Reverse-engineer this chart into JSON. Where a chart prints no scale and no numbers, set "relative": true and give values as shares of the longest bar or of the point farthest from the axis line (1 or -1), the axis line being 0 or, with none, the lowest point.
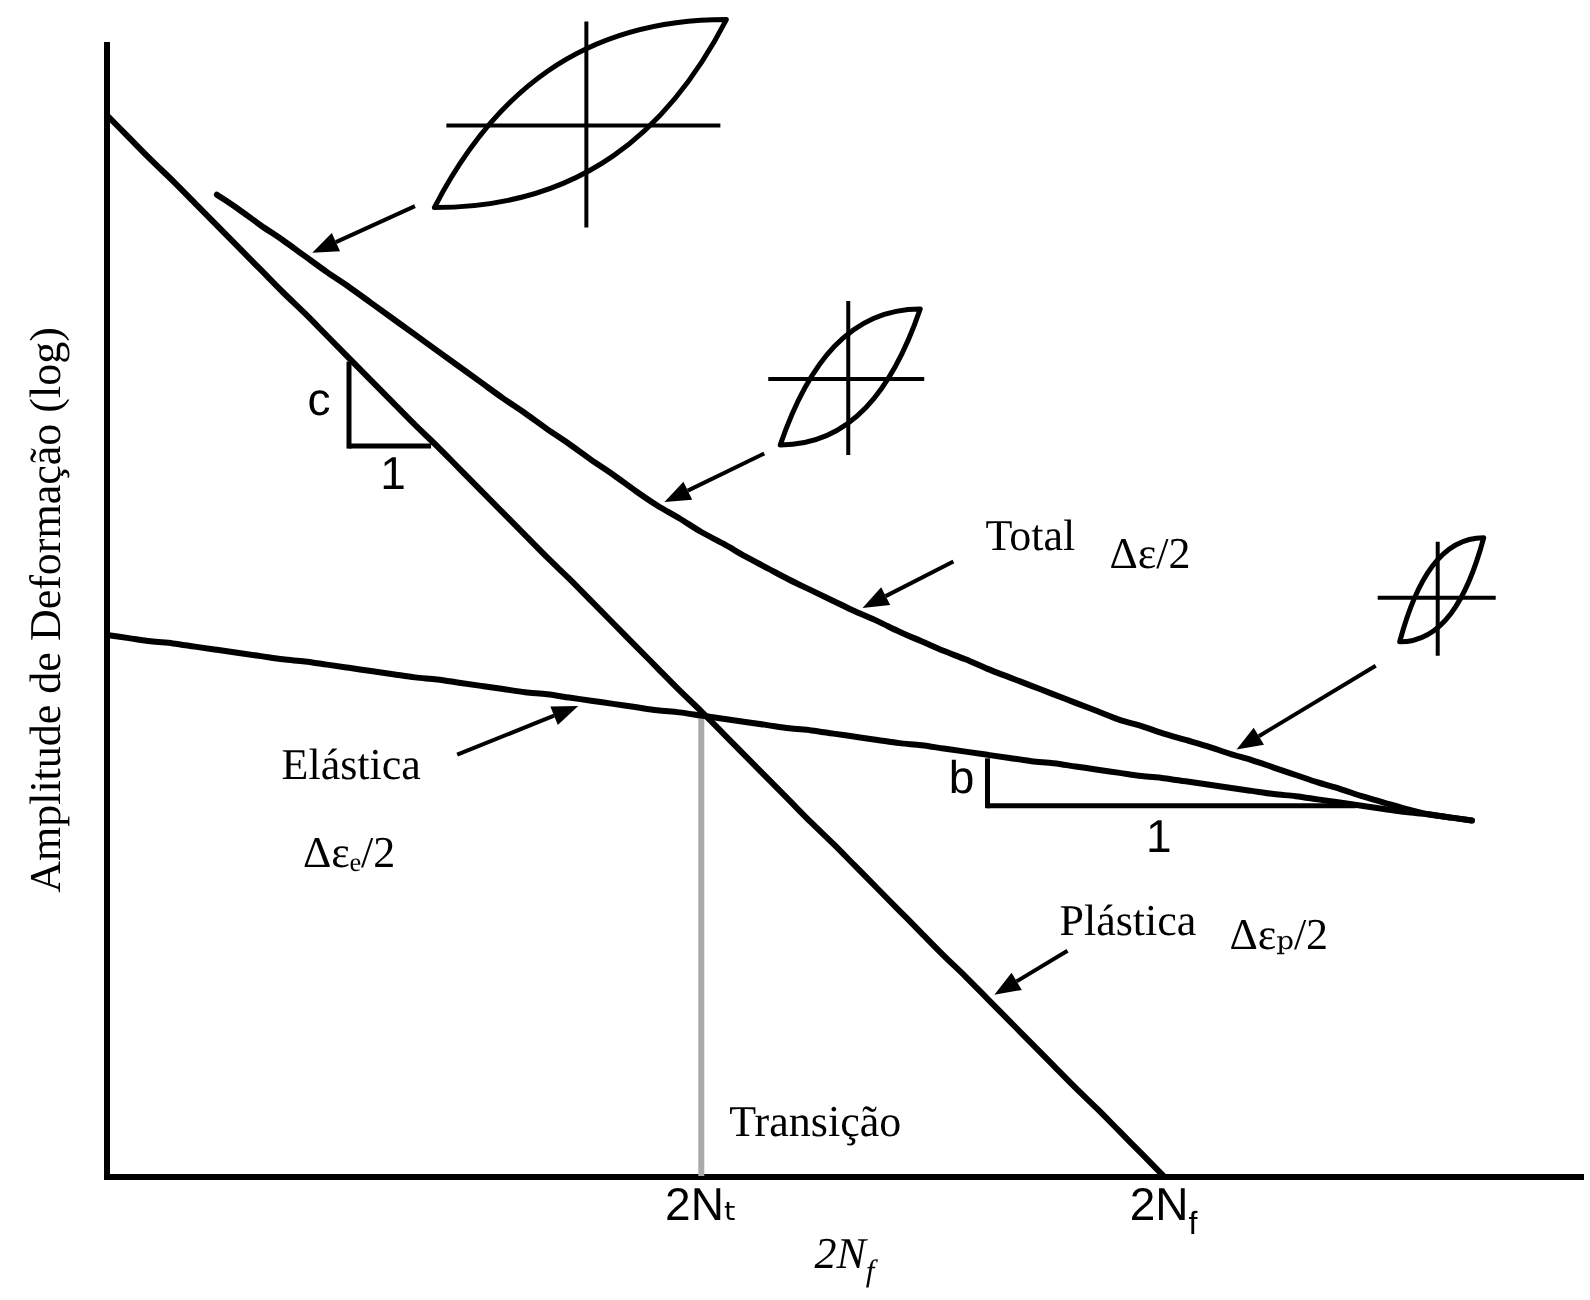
{
  "chart_data": {
    "type": "line",
    "relative": true,
    "legend": false,
    "grid": false,
    "marker": "none",
    "xlabel": "2N$_{f}$",
    "ylabel": "Amplitude de Deformação (log)",
    "categories": [
      null,
      null,
      null,
      null,
      null,
      null,
      null,
      null,
      null,
      null,
      null,
      null,
      null,
      null,
      null,
      null,
      null,
      null,
      null,
      null,
      null,
      null,
      null,
      null,
      null,
      null,
      null,
      "2Nₜ",
      null,
      null,
      null,
      null,
      null,
      null,
      null,
      null,
      null,
      null,
      null,
      null,
      null,
      null,
      null,
      null,
      null,
      null,
      null,
      null,
      "2N$_{f}$",
      null,
      null,
      null,
      null,
      null,
      null,
      null,
      null,
      null,
      null,
      null,
      null,
      null,
      null,
      null,
      null,
      null,
      null,
      null
    ],
    "series": [
      {
        "name": "Total Δε/2",
        "color": "#000000",
        "values": [
          null,
          null,
          null,
          null,
          null,
          0.925,
          0.911,
          0.896,
          0.882,
          0.867,
          0.852,
          0.838,
          0.823,
          0.808,
          0.793,
          0.778,
          0.763,
          0.748,
          0.733,
          0.719,
          0.704,
          0.69,
          0.675,
          0.661,
          0.646,
          0.632,
          0.62,
          0.607,
          0.596,
          0.584,
          0.573,
          0.562,
          0.552,
          0.542,
          0.532,
          0.523,
          0.513,
          0.504,
          0.495,
          0.487,
          0.478,
          0.47,
          0.462,
          0.454,
          0.446,
          0.438,
          0.43,
          0.424,
          0.417,
          0.411,
          0.405,
          0.398,
          0.392,
          0.385,
          0.378,
          0.371,
          0.365,
          0.358,
          0.352,
          0.346,
          0.341,
          0.338,
          0.335,
          null,
          null,
          null,
          null,
          null
        ]
      },
      {
        "name": "Elástica Δεₑ/2",
        "color": "#000000",
        "values": [
          0.51,
          0.507,
          0.504,
          0.502,
          0.499,
          0.496,
          0.493,
          0.49,
          0.487,
          0.485,
          0.482,
          0.479,
          0.476,
          0.473,
          0.47,
          0.468,
          0.465,
          0.462,
          0.459,
          0.456,
          0.454,
          0.451,
          0.448,
          0.445,
          0.442,
          0.439,
          0.437,
          0.434,
          0.431,
          0.428,
          0.425,
          0.422,
          0.42,
          0.417,
          0.414,
          0.411,
          0.408,
          0.406,
          0.403,
          0.4,
          0.397,
          0.394,
          0.391,
          0.389,
          0.386,
          0.383,
          0.38,
          0.377,
          0.375,
          0.372,
          0.369,
          0.366,
          0.363,
          0.36,
          0.358,
          0.355,
          0.352,
          0.349,
          0.346,
          0.343,
          0.341,
          0.338,
          0.335,
          null,
          null,
          null,
          null,
          null
        ]
      },
      {
        "name": "Plástica Δεₚ/2",
        "color": "#000000",
        "values": [
          1,
          0.979,
          0.958,
          0.938,
          0.917,
          0.896,
          0.875,
          0.854,
          0.833,
          0.813,
          0.792,
          0.771,
          0.75,
          0.729,
          0.708,
          0.688,
          0.667,
          0.646,
          0.625,
          0.604,
          0.583,
          0.563,
          0.542,
          0.521,
          0.5,
          0.479,
          0.458,
          0.438,
          0.417,
          0.396,
          0.375,
          0.354,
          0.333,
          0.313,
          0.292,
          0.271,
          0.25,
          0.229,
          0.208,
          0.188,
          0.167,
          0.146,
          0.125,
          0.104,
          0.083,
          0.063,
          0.042,
          0.021,
          0,
          null,
          null,
          null,
          null,
          null,
          null,
          null,
          null,
          null,
          null,
          null,
          null,
          null,
          null,
          null,
          null,
          null,
          null,
          null
        ]
      }
    ],
    "ref_lines": [
      {
        "axis": "x",
        "value": "2Nₜ",
        "label": "Transição",
        "color": "#aaaaaa"
      }
    ],
    "annotations": [
      "c",
      "1",
      "b",
      "1"
    ]
  }
}
